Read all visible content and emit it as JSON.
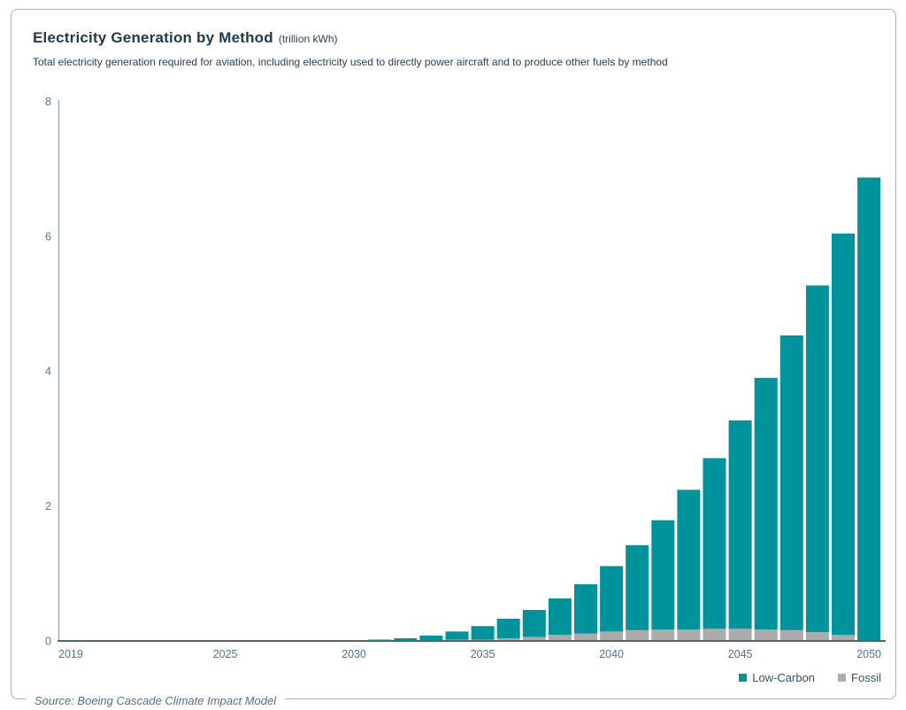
{
  "header": {
    "title": "Electricity Generation by Method",
    "title_unit": "(trillion kWh)",
    "subtitle": "Total electricity generation required for aviation, including electricity used to directly power aircraft and to produce other fuels by method"
  },
  "footer": {
    "source": "Source: Boeing Cascade Climate Impact Model"
  },
  "colors": {
    "low_carbon": "#00939B",
    "fossil": "#ABABAB",
    "axis_x": "#596269",
    "axis_y": "#a4adb5",
    "tick_label": "#54738e"
  },
  "chart_data": {
    "type": "bar",
    "stacked": true,
    "title": "Electricity Generation by Method (trillion kWh)",
    "xlabel": "",
    "ylabel": "",
    "ylim": [
      0,
      8
    ],
    "yticks": [
      0,
      2,
      4,
      6,
      8
    ],
    "xticks": [
      2019,
      2025,
      2030,
      2035,
      2040,
      2045,
      2050
    ],
    "grid": false,
    "legend_position": "bottom-right",
    "x": [
      2019,
      2020,
      2021,
      2022,
      2023,
      2024,
      2025,
      2026,
      2027,
      2028,
      2029,
      2030,
      2031,
      2032,
      2033,
      2034,
      2035,
      2036,
      2037,
      2038,
      2039,
      2040,
      2041,
      2042,
      2043,
      2044,
      2045,
      2046,
      2047,
      2048,
      2049,
      2050
    ],
    "series": [
      {
        "name": "Low-Carbon",
        "color": "#00939B",
        "values": [
          0,
          0,
          0,
          0,
          0,
          0,
          0,
          0,
          0,
          0,
          0,
          0.01,
          0.02,
          0.03,
          0.07,
          0.12,
          0.2,
          0.29,
          0.4,
          0.54,
          0.73,
          0.97,
          1.26,
          1.62,
          2.07,
          2.53,
          3.09,
          3.73,
          4.37,
          5.14,
          5.95,
          6.86
        ]
      },
      {
        "name": "Fossil",
        "color": "#ABABAB",
        "values": [
          0,
          0,
          0,
          0,
          0,
          0,
          0,
          0,
          0,
          0,
          0,
          0,
          0,
          0.01,
          0.01,
          0.02,
          0.02,
          0.04,
          0.06,
          0.09,
          0.11,
          0.14,
          0.16,
          0.17,
          0.17,
          0.18,
          0.18,
          0.17,
          0.16,
          0.13,
          0.09,
          0.01
        ]
      }
    ]
  }
}
